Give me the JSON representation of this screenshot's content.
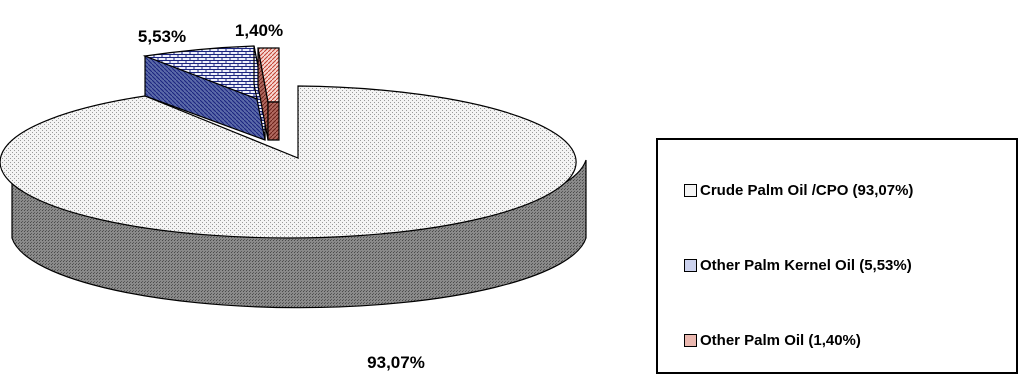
{
  "chart_data": {
    "type": "pie",
    "title": "",
    "slices": [
      {
        "label": "93,07%",
        "value": 93.07,
        "color": "#f2f2f2",
        "pattern": "dots"
      },
      {
        "label": "5,53%",
        "value": 5.53,
        "color": "#d6dcf0",
        "pattern": "bricks"
      },
      {
        "label": "1,40%",
        "value": 1.4,
        "color": "#f2c8c0",
        "pattern": "diagonal"
      }
    ],
    "legend": {
      "placement": "right",
      "items": [
        {
          "label": "Crude Palm Oil /CPO (93,07%)"
        },
        {
          "label": "Other Palm Kernel Oil  (5,53%)"
        },
        {
          "label": "Other Palm Oil  (1,40%)"
        }
      ]
    }
  }
}
